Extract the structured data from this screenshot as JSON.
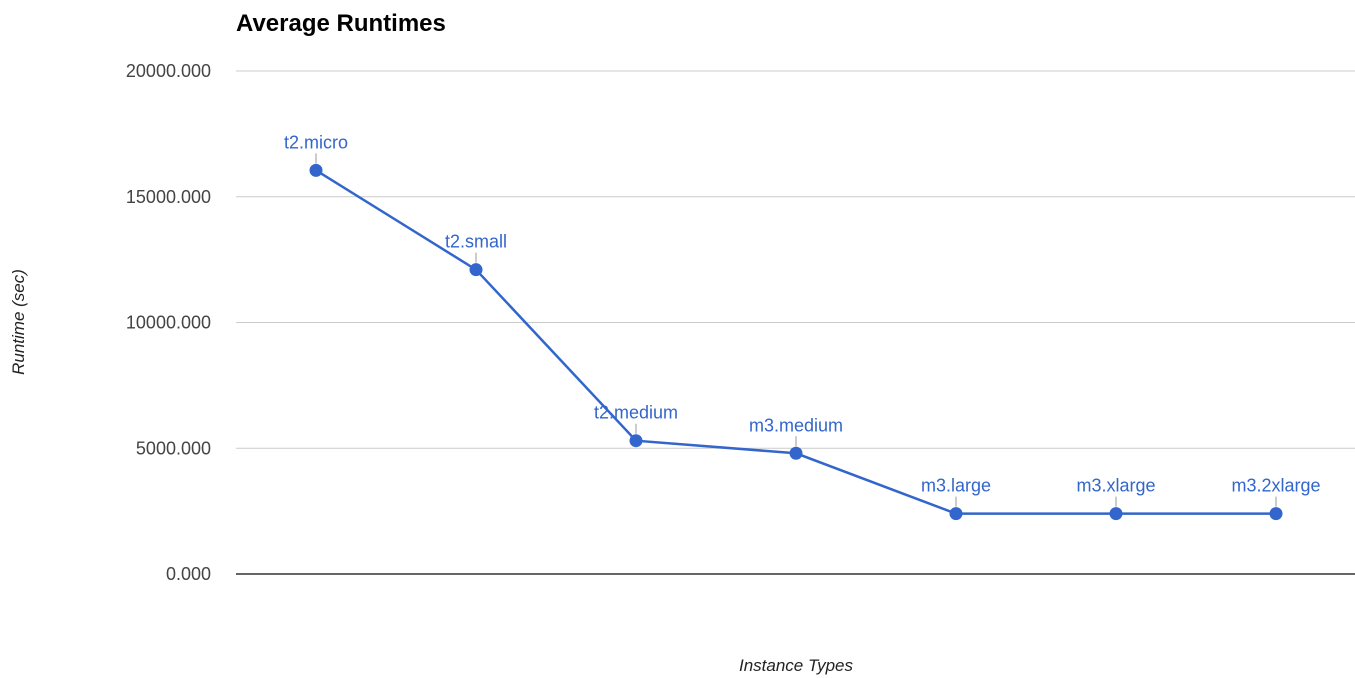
{
  "chart_data": {
    "type": "line",
    "title": "Average Runtimes",
    "xlabel": "Instance Types",
    "ylabel": "Runtime (sec)",
    "ylim": [
      0,
      20000
    ],
    "yticks": [
      "0.000",
      "5000.000",
      "10000.000",
      "15000.000",
      "20000.000"
    ],
    "ytick_values": [
      0,
      5000,
      10000,
      15000,
      20000
    ],
    "grid": true,
    "legend": "none",
    "categories": [
      "t2.micro",
      "t2.small",
      "t2.medium",
      "m3.medium",
      "m3.large",
      "m3.xlarge",
      "m3.2xlarge"
    ],
    "series": [
      {
        "values": [
          16050,
          12100,
          5300,
          4800,
          2400,
          2400,
          2400
        ]
      }
    ],
    "point_labels": [
      "t2.micro",
      "t2.small",
      "t2.medium",
      "m3.medium",
      "m3.large",
      "m3.xlarge",
      "m3.2xlarge"
    ],
    "colors": {
      "line": "#3366cc",
      "grid": "#cccccc",
      "baseline": "#333333"
    }
  }
}
